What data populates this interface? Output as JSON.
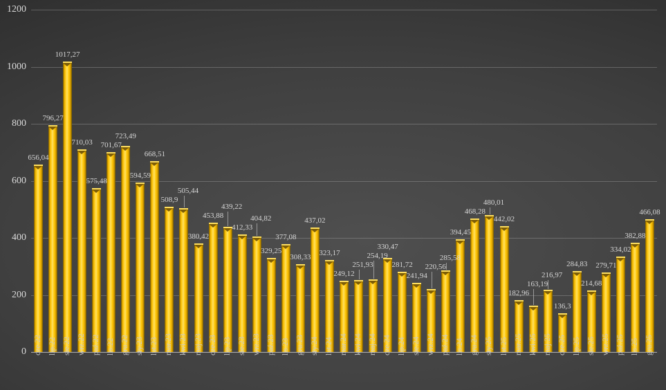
{
  "chart_data": {
    "type": "bar",
    "title": "",
    "xlabel": "",
    "ylabel": "",
    "categories": [
      "cze.22",
      "lip.22",
      "sie.22",
      "wrz.22",
      "paź.22",
      "lis.22",
      "gru.22",
      "sty.23",
      "lut.23",
      "mar.23",
      "kwi.23",
      "maj.23",
      "cze.23",
      "lip.23",
      "sie.23",
      "wrz.23",
      "paź.23",
      "lis.23",
      "gru.23",
      "sty.24",
      "lut.24",
      "mar.24",
      "kwi.24",
      "maj.24",
      "cze.24",
      "lip.24",
      "sie.24",
      "wrz.24",
      "paź.24",
      "lis.24",
      "gru.24",
      "sty.25",
      "lut.25",
      "mar.25",
      "kwi.25",
      "maj.25",
      "cze.25",
      "lip.25",
      "sie.25",
      "wrz.25",
      "paź.25",
      "lis.25",
      "gru.25"
    ],
    "values": [
      656.04,
      796.27,
      1017.27,
      710.03,
      575.48,
      701.67,
      723.49,
      594.59,
      668.51,
      508.9,
      505.44,
      380.42,
      453.88,
      439.22,
      412.33,
      404.82,
      329.25,
      377.08,
      308.33,
      437.02,
      323.17,
      249.12,
      251.93,
      254.19,
      330.47,
      281.72,
      241.94,
      220.56,
      285.58,
      394.45,
      468.28,
      480.01,
      442.02,
      182.96,
      163.19,
      216.97,
      136.3,
      284.83,
      214.68,
      279.71,
      334.02,
      382.88,
      466.08
    ],
    "value_labels": [
      "656,04",
      "796,27",
      "1017,27",
      "710,03",
      "575,48",
      "701,67",
      "723,49",
      "594,59",
      "668,51",
      "508,9",
      "505,44",
      "380,42",
      "453,88",
      "439,22",
      "412,33",
      "404,82",
      "329,25",
      "377,08",
      "308,33",
      "437,02",
      "323,17",
      "249,12",
      "251,93",
      "254,19",
      "330,47",
      "281,72",
      "241,94",
      "220,56",
      "285,58",
      "394,45",
      "468,28",
      "480,01",
      "442,02",
      "182,96",
      "163,19",
      "216,97",
      "136,3",
      "284,83",
      "214,68",
      "279,71",
      "334,02",
      "382,88",
      "466,08"
    ],
    "ylim": [
      0,
      1200
    ],
    "yticks": [
      0,
      200,
      400,
      600,
      800,
      1000,
      1200
    ],
    "ytick_labels": [
      "0",
      "200",
      "400",
      "600",
      "800",
      "1000",
      "1200"
    ],
    "grid": true,
    "legend": "none",
    "colors": {
      "bar_main": "#FFC000",
      "bar_highlight": "#FFE067",
      "bar_edge_dark": "#6A5000",
      "bar_cap_notch": "#7D5D06",
      "data_label": "#D6D6D6",
      "axis_label": "#D9D9D9",
      "category_label": "#C9C9C9",
      "gridline": "#8A8A8A",
      "background_dark": "#1D1D1D",
      "background_light": "#4F4F4F"
    }
  }
}
